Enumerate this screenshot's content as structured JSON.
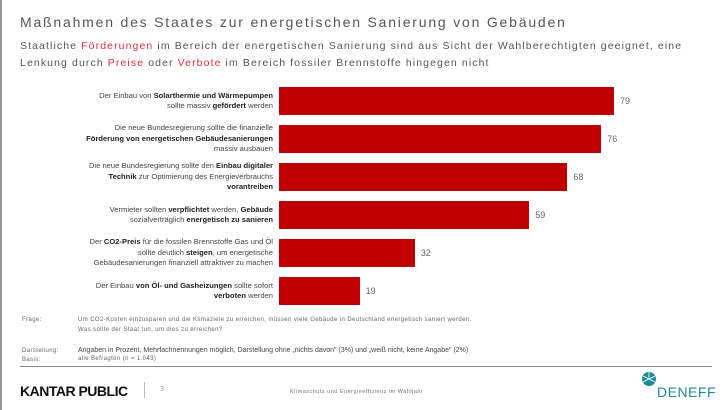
{
  "header": {
    "title": "Maßnahmen des Staates zur energetischen Sanierung von Gebäuden",
    "subtitle_parts": [
      {
        "text": "Staatliche ",
        "hl": false
      },
      {
        "text": "Förderungen",
        "hl": true
      },
      {
        "text": " im Bereich der energetischen Sanierung sind aus Sicht der Wahlberechtigten geeignet, eine Lenkung durch ",
        "hl": false
      },
      {
        "text": "Preise",
        "hl": true
      },
      {
        "text": " oder ",
        "hl": false
      },
      {
        "text": "Verbote",
        "hl": true
      },
      {
        "text": " im Bereich fossiler Brennstoffe hingegen nicht",
        "hl": false
      }
    ]
  },
  "chart_data": {
    "type": "bar",
    "orientation": "horizontal",
    "unit": "Prozent",
    "xlim": [
      0,
      79
    ],
    "bar_color": "#c00000",
    "categories": [
      "Der Einbau von Solarthermie und Wärmepumpen sollte massiv gefördert werden",
      "Die neue Bundesregierung sollte die finanzielle Förderung von energetischen Gebäudesanierungen massiv ausbauen",
      "Die neue Bundesregierung sollte den Einbau digitaler Technik zur Optimierung des Energieverbrauchs vorantreiben",
      "Vermieter sollten verpflichtet werden, Gebäude sozialverträglich energetisch zu sanieren",
      "Der CO2-Preis für die fossilen Brennstoffe Gas und Öl sollte deutlich steigen, um energetische Gebäudesanierungen finanziell attraktiver zu machen",
      "Der Einbau von Öl- und Gasheizungen sollte sofort verboten werden"
    ],
    "values": [
      79,
      76,
      68,
      59,
      32,
      19
    ],
    "label_lines": [
      [
        [
          [
            "Der Einbau von ",
            0
          ],
          [
            "Solarthermie und Wärmepumpen",
            1
          ]
        ],
        [
          [
            "sollte massiv ",
            0
          ],
          [
            "gefördert",
            1
          ],
          [
            " werden",
            0
          ]
        ]
      ],
      [
        [
          [
            "Die neue Bundesregierung sollte die finanzielle",
            0
          ]
        ],
        [
          [
            "Förderung von energetischen Gebäudesanierungen",
            1
          ]
        ],
        [
          [
            "massiv ausbauen",
            0
          ]
        ]
      ],
      [
        [
          [
            "Die neue Bundesregierung sollte den ",
            0
          ],
          [
            "Einbau digitaler",
            1
          ]
        ],
        [
          [
            "Technik",
            1
          ],
          [
            " zur Optimierung des Energieverbrauchs",
            0
          ]
        ],
        [
          [
            "vorantreiben",
            1
          ]
        ]
      ],
      [
        [
          [
            "Vermieter sollten ",
            0
          ],
          [
            "verpflichtet",
            1
          ],
          [
            " werden, ",
            0
          ],
          [
            "Gebäude",
            1
          ]
        ],
        [
          [
            "sozialverträglich ",
            0
          ],
          [
            "energetisch zu sanieren",
            1
          ]
        ]
      ],
      [
        [
          [
            "Der ",
            0
          ],
          [
            "CO2-Preis",
            1
          ],
          [
            " für die fossilen Brennstoffe Gas und Öl",
            0
          ]
        ],
        [
          [
            "sollte deutlich ",
            0
          ],
          [
            "steigen",
            1
          ],
          [
            ", um energetische",
            0
          ]
        ],
        [
          [
            "Gebäudesanierungen finanziell attraktiver zu machen",
            0
          ]
        ]
      ],
      [
        [
          [
            "Der Einbau ",
            0
          ],
          [
            "von Öl- und Gasheizungen",
            1
          ],
          [
            " sollte sofort",
            0
          ]
        ],
        [
          [
            "verboten",
            1
          ],
          [
            " werden",
            0
          ]
        ]
      ]
    ]
  },
  "meta": {
    "frage_label": "Frage:",
    "frage_line1": "Um CO2-Kosten einzusparen und die Klimaziele zu erreichen, müssen viele Gebäude in Deutschland energetisch saniert werden.",
    "frage_line2": "Was sollte der Staat tun, um dies zu erreichen?",
    "darstellung_label": "Darstellung:",
    "darstellung": "Angaben in Prozent, Mehrfachnennungen möglich, Darstellung ohne „nichts davon\" (3%) und „weiß nicht, keine Angabe\" (2%)",
    "basis_label": "Basis:",
    "basis": "alle Befragten (n = 1.043)"
  },
  "footer": {
    "brand": "KANTAR PUBLIC",
    "page": "3",
    "title": "Klimaschutz und Energieeffizienz im Wahljahr",
    "partner": "DENEFF",
    "partner_color": "#1f8a93"
  }
}
